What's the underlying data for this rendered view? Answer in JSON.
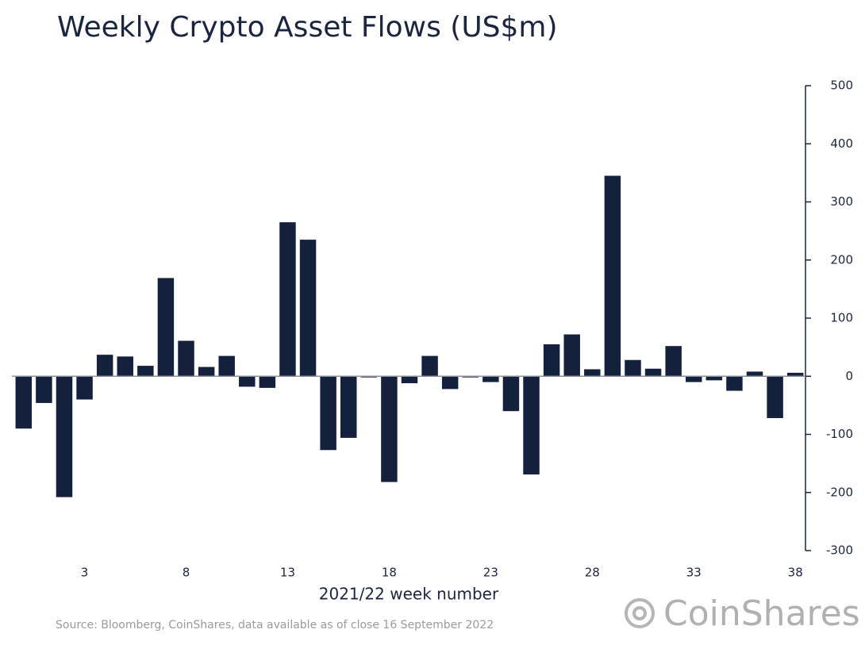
{
  "chart_data": {
    "type": "bar",
    "title": "Weekly Crypto Asset Flows (US$m)",
    "xlabel": "2021/22 week number",
    "source": "Source: Bloomberg, CoinShares, data available as of close 16 September 2022",
    "logo": "CoinShares",
    "categories": [
      null,
      null,
      null,
      "3",
      null,
      null,
      null,
      null,
      "8",
      null,
      null,
      null,
      null,
      "13",
      null,
      null,
      null,
      null,
      "18",
      null,
      null,
      null,
      null,
      "23",
      null,
      null,
      null,
      null,
      "28",
      null,
      null,
      null,
      null,
      "33",
      null,
      null,
      null,
      null,
      "38"
    ],
    "values": [
      -90,
      -46,
      -208,
      -40,
      37,
      34,
      18,
      169,
      61,
      16,
      35,
      -18,
      -20,
      265,
      235,
      -127,
      -106,
      -2,
      -182,
      -12,
      35,
      -22,
      -2,
      -10,
      -60,
      -169,
      55,
      72,
      12,
      345,
      28,
      13,
      52,
      -10,
      -7,
      -25,
      8,
      -72,
      6
    ],
    "color": "#14213d",
    "ylim": [
      -300,
      500
    ],
    "yticks": [
      500,
      400,
      300,
      200,
      100,
      0,
      -100,
      -200,
      -300
    ]
  }
}
